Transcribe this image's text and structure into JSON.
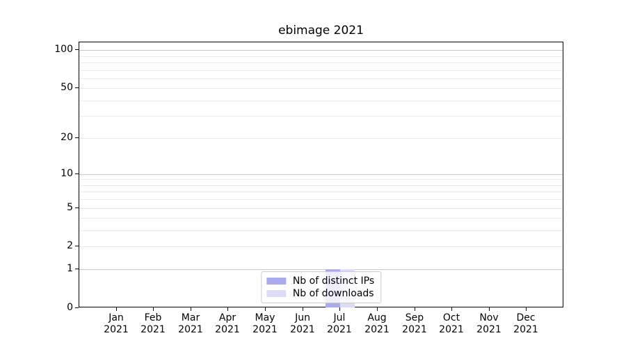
{
  "figure": {
    "title": "ebimage 2021"
  },
  "colors": {
    "ips_bar": "#aaaaee",
    "downloads_bar": "#dcdcf8",
    "grid_major": "#c6c6c6",
    "grid_minor": "#ebebeb",
    "spine": "#000000",
    "legend_border": "#cccccc",
    "text": "#000000"
  },
  "chart_data": {
    "type": "bar",
    "title": "ebimage 2021",
    "categories": [
      "Jan 2021",
      "Feb 2021",
      "Mar 2021",
      "Apr 2021",
      "May 2021",
      "Jun 2021",
      "Jul 2021",
      "Aug 2021",
      "Sep 2021",
      "Oct 2021",
      "Nov 2021",
      "Dec 2021"
    ],
    "x_tick_lines": [
      {
        "month": "Jan",
        "year": "2021"
      },
      {
        "month": "Feb",
        "year": "2021"
      },
      {
        "month": "Mar",
        "year": "2021"
      },
      {
        "month": "Apr",
        "year": "2021"
      },
      {
        "month": "May",
        "year": "2021"
      },
      {
        "month": "Jun",
        "year": "2021"
      },
      {
        "month": "Jul",
        "year": "2021"
      },
      {
        "month": "Aug",
        "year": "2021"
      },
      {
        "month": "Sep",
        "year": "2021"
      },
      {
        "month": "Oct",
        "year": "2021"
      },
      {
        "month": "Nov",
        "year": "2021"
      },
      {
        "month": "Dec",
        "year": "2021"
      }
    ],
    "series": [
      {
        "name": "Nb of distinct IPs",
        "color": "#aaaaee",
        "values": [
          0,
          0,
          0,
          0,
          0,
          0,
          1,
          0,
          0,
          0,
          0,
          0
        ]
      },
      {
        "name": "Nb of downloads",
        "color": "#dcdcf8",
        "values": [
          0,
          0,
          0,
          0,
          0,
          0,
          1,
          0,
          0,
          0,
          0,
          0
        ]
      }
    ],
    "y_axis": {
      "scale": "log1p",
      "min": 0,
      "max": 115,
      "labeled_ticks": [
        0,
        1,
        2,
        5,
        10,
        20,
        50,
        100
      ],
      "grid_major": [
        1,
        10,
        100
      ],
      "grid_minor": [
        2,
        3,
        4,
        5,
        6,
        7,
        8,
        9,
        20,
        30,
        40,
        50,
        60,
        70,
        80,
        90
      ]
    },
    "legend": {
      "position": "lower center",
      "entries": [
        "Nb of distinct IPs",
        "Nb of downloads"
      ]
    },
    "grid": true
  }
}
